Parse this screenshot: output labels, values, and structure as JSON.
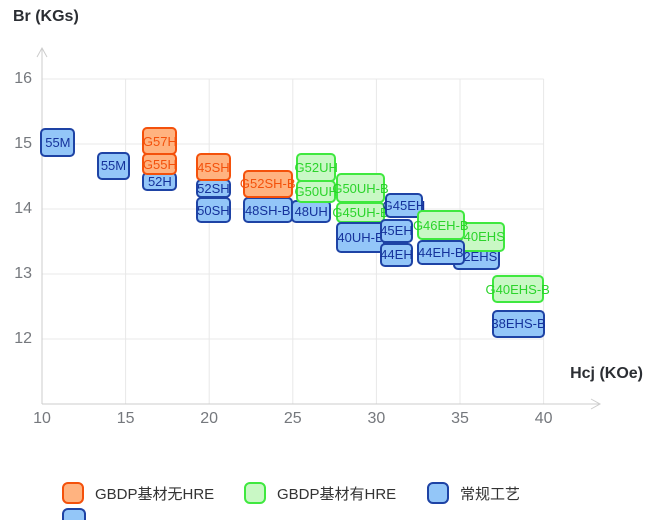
{
  "chart_data": {
    "type": "scatter",
    "title": "",
    "xlabel": "Hcj (KOe)",
    "ylabel": "Br (KGs)",
    "x_axis": {
      "label": "Hcj (KOe)",
      "ticks": [
        10,
        15,
        20,
        25,
        30,
        35,
        40
      ],
      "range": [
        10,
        43.5
      ]
    },
    "y_axis": {
      "label": "Br (KGs)",
      "ticks": [
        16,
        15,
        14,
        13,
        12
      ],
      "range": [
        11,
        16.5
      ]
    },
    "grid": true,
    "legend_position": "bottom",
    "series_styles": {
      "gbdp_no_hre": {
        "fill": "#FFB380",
        "stroke": "#F4510B",
        "text": "#F4510B"
      },
      "gbdp_hre": {
        "fill": "#C9F8C5",
        "stroke": "#3FE83F",
        "text": "#2BD42B"
      },
      "conventional": {
        "fill": "#93C6F8",
        "stroke": "#1E43A5",
        "text": "#15329B"
      }
    },
    "legend": {
      "items": [
        {
          "label": "GBDP基材无HRE",
          "series": "gbdp_no_hre"
        },
        {
          "label": "GBDP基材有HRE",
          "series": "gbdp_hre"
        },
        {
          "label": "常规工艺",
          "series": "conventional"
        }
      ],
      "partial_second_row_swatch": {
        "series": "conventional"
      }
    },
    "boxes": [
      {
        "label": "55M",
        "series": "conventional",
        "hcj": [
          9.9,
          12.0
        ],
        "br": [
          14.8,
          15.25
        ]
      },
      {
        "label": "55M",
        "series": "conventional",
        "hcj": [
          13.3,
          15.25
        ],
        "br": [
          14.45,
          14.88
        ]
      },
      {
        "label": "52H",
        "series": "conventional",
        "hcj": [
          16.0,
          18.1
        ],
        "br": [
          14.28,
          14.57
        ]
      },
      {
        "label": "G57H",
        "series": "gbdp_no_hre",
        "hcj": [
          16.0,
          18.1
        ],
        "br": [
          14.83,
          15.26
        ]
      },
      {
        "label": "G55H",
        "series": "gbdp_no_hre",
        "hcj": [
          16.0,
          18.1
        ],
        "br": [
          14.52,
          14.86
        ]
      },
      {
        "label": "52SH",
        "series": "conventional",
        "hcj": [
          19.2,
          21.3
        ],
        "br": [
          14.17,
          14.46
        ]
      },
      {
        "label": "50SH",
        "series": "conventional",
        "hcj": [
          19.2,
          21.3
        ],
        "br": [
          13.78,
          14.18
        ]
      },
      {
        "label": "45SH",
        "series": "gbdp_no_hre",
        "hcj": [
          19.2,
          21.3
        ],
        "br": [
          14.43,
          14.86
        ]
      },
      {
        "label": "48SH-B",
        "series": "conventional",
        "hcj": [
          22.0,
          25.0
        ],
        "br": [
          13.78,
          14.18
        ]
      },
      {
        "label": "G52SH-B",
        "series": "gbdp_no_hre",
        "hcj": [
          22.0,
          25.0
        ],
        "br": [
          14.17,
          14.6
        ]
      },
      {
        "label": "48UH",
        "series": "conventional",
        "hcj": [
          24.9,
          27.3
        ],
        "br": [
          13.78,
          14.14
        ]
      },
      {
        "label": "G52UH",
        "series": "gbdp_hre",
        "hcj": [
          25.2,
          27.6
        ],
        "br": [
          14.42,
          14.86
        ]
      },
      {
        "label": "G50UH",
        "series": "gbdp_hre",
        "hcj": [
          25.2,
          27.6
        ],
        "br": [
          14.09,
          14.45
        ]
      },
      {
        "label": "G50UH-B",
        "series": "gbdp_hre",
        "hcj": [
          27.6,
          30.5
        ],
        "br": [
          14.09,
          14.55
        ]
      },
      {
        "label": "G45UH-B",
        "series": "gbdp_hre",
        "hcj": [
          27.6,
          30.5
        ],
        "br": [
          13.78,
          14.11
        ]
      },
      {
        "label": "40UH-B",
        "series": "conventional",
        "hcj": [
          27.6,
          30.5
        ],
        "br": [
          13.32,
          13.8
        ]
      },
      {
        "label": "G45EH",
        "series": "conventional",
        "hcj": [
          30.5,
          32.8
        ],
        "br": [
          13.86,
          14.25
        ]
      },
      {
        "label": "45EH",
        "series": "conventional",
        "hcj": [
          30.2,
          32.2
        ],
        "br": [
          13.48,
          13.85
        ]
      },
      {
        "label": "44EH",
        "series": "conventional",
        "hcj": [
          30.2,
          32.2
        ],
        "br": [
          13.11,
          13.48
        ]
      },
      {
        "label": "42EHS",
        "series": "conventional",
        "hcj": [
          34.6,
          37.4
        ],
        "br": [
          13.06,
          13.48
        ]
      },
      {
        "label": "G40EHS",
        "series": "gbdp_hre",
        "hcj": [
          34.6,
          37.7
        ],
        "br": [
          13.34,
          13.8
        ]
      },
      {
        "label": "G46EH-B",
        "series": "gbdp_hre",
        "hcj": [
          32.4,
          35.3
        ],
        "br": [
          13.52,
          13.98
        ]
      },
      {
        "label": "44EH-B",
        "series": "conventional",
        "hcj": [
          32.4,
          35.3
        ],
        "br": [
          13.14,
          13.52
        ]
      },
      {
        "label": "G40EHS-B",
        "series": "gbdp_hre",
        "hcj": [
          36.9,
          40.0
        ],
        "br": [
          12.55,
          12.98
        ]
      },
      {
        "label": "38EHS-B",
        "series": "conventional",
        "hcj": [
          36.9,
          40.1
        ],
        "br": [
          12.02,
          12.45
        ]
      }
    ]
  }
}
